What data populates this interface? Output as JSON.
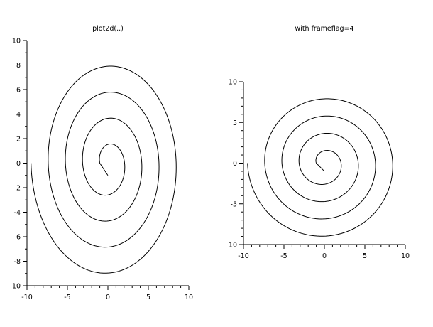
{
  "chart_data": [
    {
      "type": "line",
      "title": "plot2d(..)",
      "xlabel": "",
      "ylabel": "",
      "xlim": [
        -10,
        10
      ],
      "ylim": [
        -10,
        10
      ],
      "xticks": [
        -10,
        -5,
        0,
        5,
        10
      ],
      "yticks": [
        -10,
        -8,
        -6,
        -4,
        -2,
        0,
        2,
        4,
        6,
        8,
        10
      ],
      "xtick_labels": [
        "-10",
        "-5",
        "0",
        "5",
        "10"
      ],
      "ytick_labels": [
        "-10",
        "-8",
        "-6",
        "-4",
        "-2",
        "0",
        "2",
        "4",
        "6",
        "8",
        "10"
      ],
      "grid": false,
      "series": [
        {
          "curve": "spiral",
          "r_min": 1.0,
          "r_max": 9.5,
          "turns": 4,
          "end_angle": 3.1416
        }
      ]
    },
    {
      "type": "line",
      "title": "with frameflag=4",
      "xlabel": "",
      "ylabel": "",
      "xlim": [
        -10,
        10
      ],
      "ylim": [
        -10,
        10
      ],
      "xticks": [
        -10,
        -5,
        0,
        5,
        10
      ],
      "yticks": [
        -10,
        -5,
        0,
        5,
        10
      ],
      "xtick_labels": [
        "-10",
        "-5",
        "0",
        "5",
        "10"
      ],
      "ytick_labels": [
        "-10",
        "-5",
        "0",
        "5",
        "10"
      ],
      "grid": false,
      "series": [
        {
          "curve": "spiral",
          "r_min": 1.0,
          "r_max": 9.5,
          "turns": 4,
          "end_angle": 3.1416
        }
      ]
    }
  ]
}
